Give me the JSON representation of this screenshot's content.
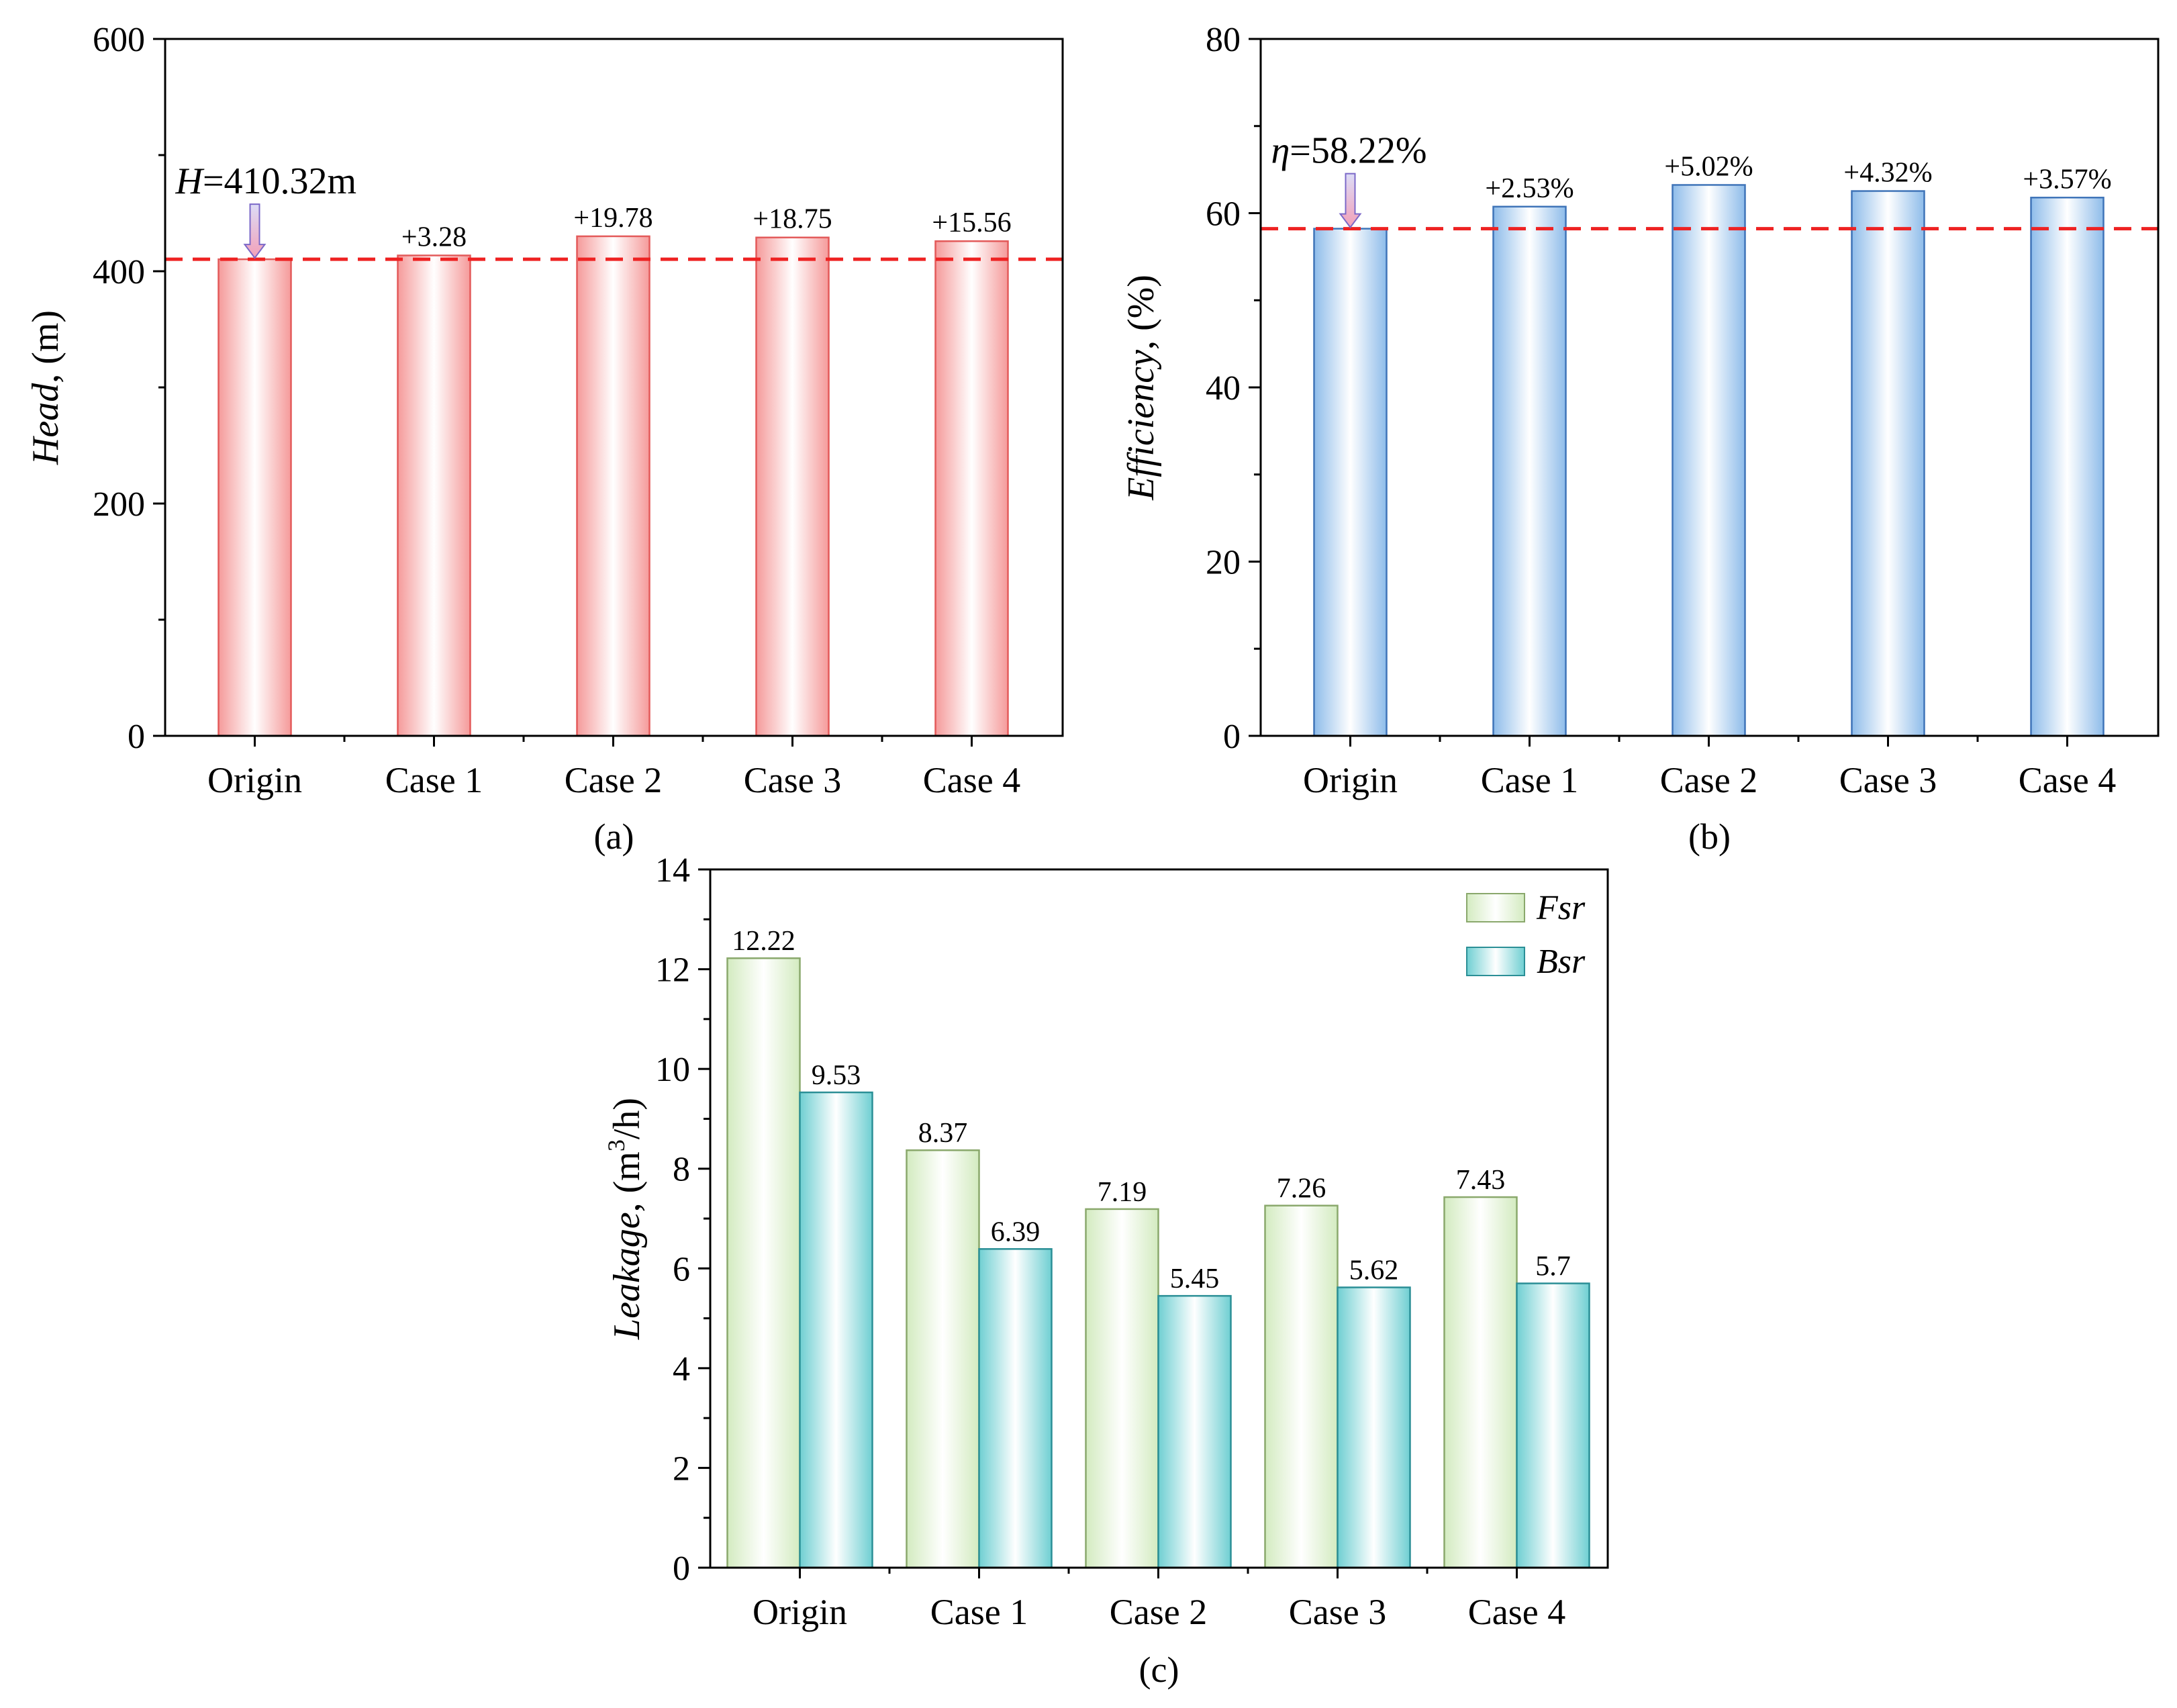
{
  "colors": {
    "head_bar_edge": "#e35a5a",
    "head_bar_fill": "#f59a9a",
    "eff_bar_edge": "#3f74b8",
    "eff_bar_fill": "#8ebcea",
    "fsr_edge": "#8aa86c",
    "fsr_fill": "#d3ebc0",
    "bsr_edge": "#2b8f96",
    "bsr_fill": "#6fcfd2",
    "ref_line": "#ee2222",
    "arrow_fill": "#c9c9f2",
    "arrow_edge": "#7b68c8",
    "axis": "#000000"
  },
  "chart_data": [
    {
      "id": "a",
      "type": "bar",
      "panel_label": "(a)",
      "categories": [
        "Origin",
        "Case 1",
        "Case 2",
        "Case 3",
        "Case 4"
      ],
      "values": [
        410.32,
        413.6,
        430.1,
        429.07,
        425.88
      ],
      "data_labels": [
        "",
        "+3.28",
        "+19.78",
        "+18.75",
        "+15.56"
      ],
      "ylabel_italic": "Head",
      "ylabel_rest": ", (m)",
      "ylim": [
        0,
        600
      ],
      "yticks": [
        0,
        200,
        400,
        600
      ],
      "reference_line": 410.32,
      "annotation_italic": "H",
      "annotation_rest": "=410.32m",
      "style": "head"
    },
    {
      "id": "b",
      "type": "bar",
      "panel_label": "(b)",
      "categories": [
        "Origin",
        "Case 1",
        "Case 2",
        "Case 3",
        "Case 4"
      ],
      "values": [
        58.22,
        60.75,
        63.24,
        62.54,
        61.79
      ],
      "data_labels": [
        "",
        "+2.53%",
        "+5.02%",
        "+4.32%",
        "+3.57%"
      ],
      "ylabel_italic": "Efficiency",
      "ylabel_rest": ", (%)",
      "ylim": [
        0,
        80
      ],
      "yticks": [
        0,
        20,
        40,
        60,
        80
      ],
      "reference_line": 58.22,
      "annotation_italic": "η",
      "annotation_rest": "=58.22%",
      "style": "eff"
    },
    {
      "id": "c",
      "type": "bar",
      "panel_label": "(c)",
      "categories": [
        "Origin",
        "Case 1",
        "Case 2",
        "Case 3",
        "Case 4"
      ],
      "series": [
        {
          "name": "Fsr",
          "values": [
            12.22,
            8.37,
            7.19,
            7.26,
            7.43
          ],
          "data_labels": [
            "12.22",
            "8.37",
            "7.19",
            "7.26",
            "7.43"
          ],
          "style": "fsr"
        },
        {
          "name": "Bsr",
          "values": [
            9.53,
            6.39,
            5.45,
            5.62,
            5.7
          ],
          "data_labels": [
            "9.53",
            "6.39",
            "5.45",
            "5.62",
            "5.7"
          ],
          "style": "bsr"
        }
      ],
      "ylabel_italic": "Leakage",
      "ylabel_rest": ", (m",
      "ylabel_sup": "3",
      "ylabel_end": "/h)",
      "ylim": [
        0,
        14
      ],
      "yticks": [
        0,
        2,
        4,
        6,
        8,
        10,
        12,
        14
      ],
      "legend": "top-right"
    }
  ]
}
